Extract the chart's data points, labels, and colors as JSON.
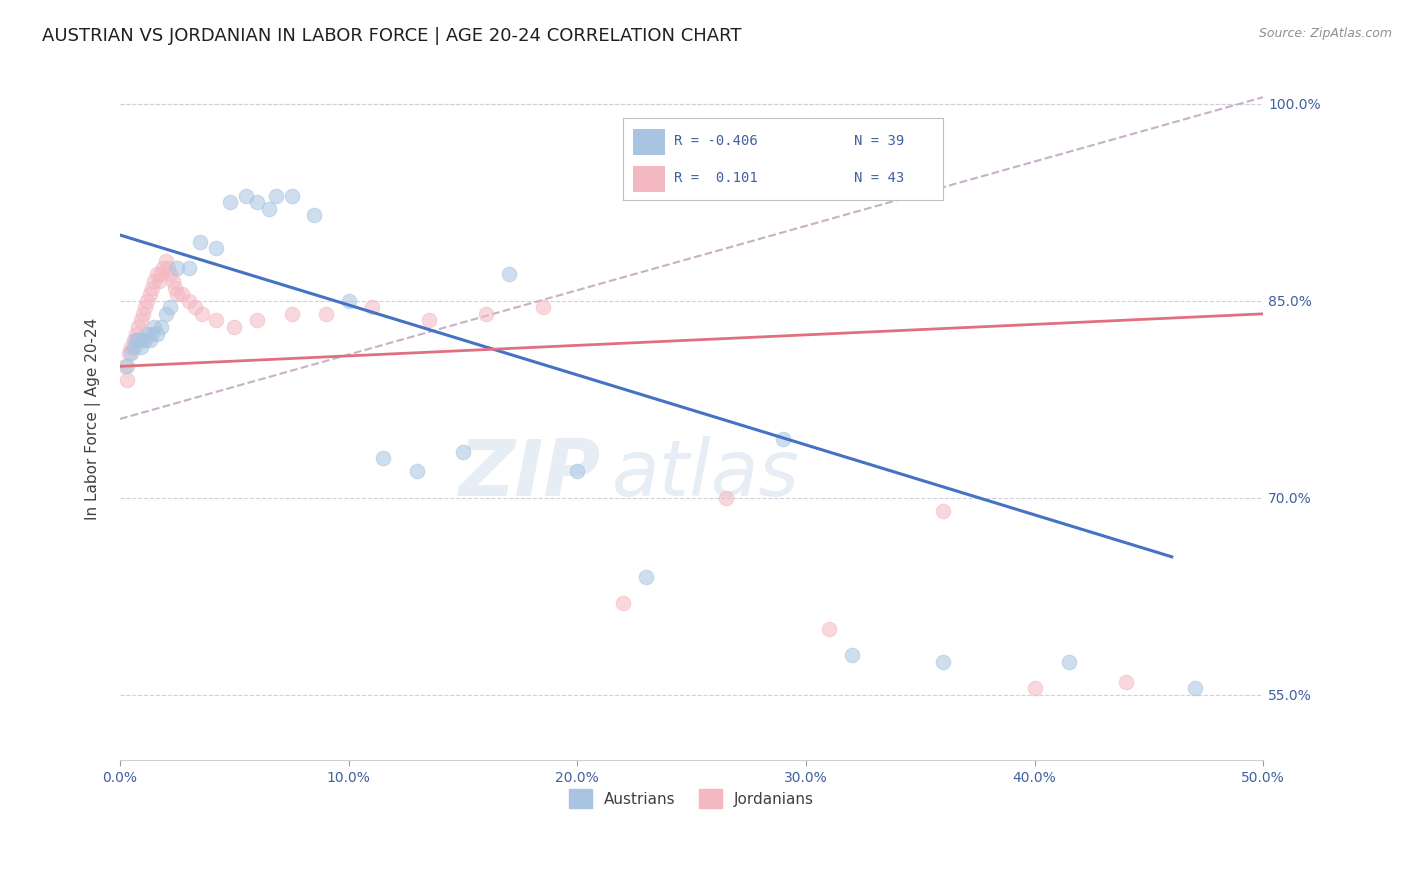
{
  "title": "AUSTRIAN VS JORDANIAN IN LABOR FORCE | AGE 20-24 CORRELATION CHART",
  "source": "Source: ZipAtlas.com",
  "ylabel": "In Labor Force | Age 20-24",
  "watermark": "ZIPatlas",
  "xlim": [
    0.0,
    0.5
  ],
  "ylim": [
    0.5,
    1.02
  ],
  "xticks": [
    0.0,
    0.1,
    0.2,
    0.3,
    0.4,
    0.5
  ],
  "yticks_right": [
    0.55,
    0.7,
    0.85,
    1.0
  ],
  "ytick_labels_right": [
    "55.0%",
    "70.0%",
    "85.0%",
    "100.0%"
  ],
  "grid_yticks": [
    0.55,
    0.7,
    0.85,
    1.0
  ],
  "xtick_labels": [
    "0.0%",
    "10.0%",
    "20.0%",
    "30.0%",
    "40.0%",
    "50.0%"
  ],
  "legend_R_blue": "R = -0.406",
  "legend_N_blue": "N = 39",
  "legend_R_pink": "R =  0.101",
  "legend_N_pink": "N = 43",
  "austrians_x": [
    0.003,
    0.005,
    0.006,
    0.007,
    0.008,
    0.009,
    0.01,
    0.011,
    0.012,
    0.013,
    0.014,
    0.015,
    0.016,
    0.018,
    0.02,
    0.022,
    0.025,
    0.03,
    0.035,
    0.042,
    0.048,
    0.055,
    0.06,
    0.065,
    0.068,
    0.075,
    0.085,
    0.1,
    0.115,
    0.13,
    0.15,
    0.17,
    0.2,
    0.23,
    0.29,
    0.32,
    0.36,
    0.415,
    0.47
  ],
  "austrians_y": [
    0.8,
    0.81,
    0.815,
    0.82,
    0.82,
    0.815,
    0.82,
    0.82,
    0.825,
    0.82,
    0.825,
    0.83,
    0.825,
    0.83,
    0.84,
    0.845,
    0.875,
    0.875,
    0.895,
    0.89,
    0.925,
    0.93,
    0.925,
    0.92,
    0.93,
    0.93,
    0.915,
    0.85,
    0.73,
    0.72,
    0.735,
    0.87,
    0.72,
    0.64,
    0.745,
    0.58,
    0.575,
    0.575,
    0.555
  ],
  "jordanians_x": [
    0.002,
    0.003,
    0.004,
    0.005,
    0.006,
    0.007,
    0.008,
    0.009,
    0.01,
    0.011,
    0.012,
    0.013,
    0.014,
    0.015,
    0.016,
    0.017,
    0.018,
    0.019,
    0.02,
    0.021,
    0.022,
    0.023,
    0.024,
    0.025,
    0.027,
    0.03,
    0.033,
    0.036,
    0.042,
    0.05,
    0.06,
    0.075,
    0.09,
    0.11,
    0.135,
    0.16,
    0.185,
    0.22,
    0.265,
    0.31,
    0.36,
    0.4,
    0.44
  ],
  "jordanians_y": [
    0.8,
    0.79,
    0.81,
    0.815,
    0.82,
    0.825,
    0.83,
    0.835,
    0.84,
    0.845,
    0.85,
    0.855,
    0.86,
    0.865,
    0.87,
    0.865,
    0.87,
    0.875,
    0.88,
    0.875,
    0.87,
    0.865,
    0.86,
    0.855,
    0.855,
    0.85,
    0.845,
    0.84,
    0.835,
    0.83,
    0.835,
    0.84,
    0.84,
    0.845,
    0.835,
    0.84,
    0.845,
    0.62,
    0.7,
    0.6,
    0.69,
    0.555,
    0.56
  ],
  "blue_line_x": [
    0.0,
    0.46
  ],
  "blue_line_y": [
    0.9,
    0.655
  ],
  "pink_line_x": [
    0.0,
    0.5
  ],
  "pink_line_y": [
    0.8,
    0.84
  ],
  "dashed_line_x": [
    0.0,
    0.5
  ],
  "dashed_line_y": [
    0.76,
    1.005
  ],
  "blue_scatter_color": "#a8c4e0",
  "pink_scatter_color": "#f4b8c1",
  "blue_line_color": "#4472c4",
  "pink_line_color": "#e07080",
  "dashed_line_color": "#c8b0c8",
  "background_color": "#ffffff",
  "grid_color": "#d0d0d8",
  "title_fontsize": 13,
  "axis_fontsize": 11,
  "tick_fontsize": 10,
  "scatter_size": 110,
  "scatter_alpha": 0.55,
  "scatter_linewidth": 0.8
}
